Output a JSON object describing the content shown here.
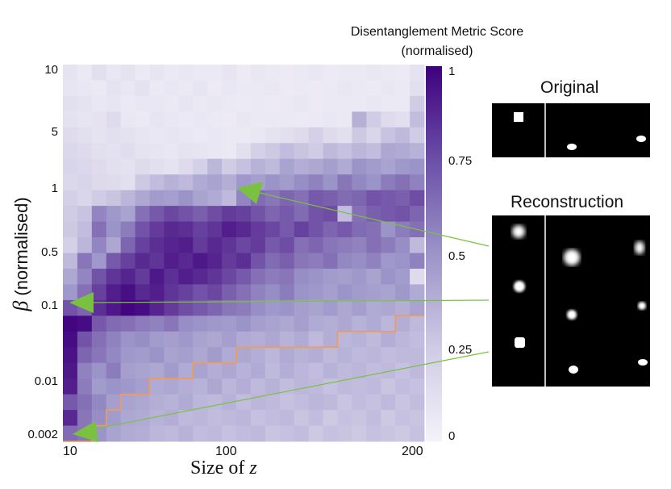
{
  "chart_data": {
    "type": "heatmap",
    "title": "",
    "xlabel_prefix": "Size of ",
    "xlabel_symbol": "z",
    "ylabel_symbol": "β",
    "ylabel_text": " (normalised)",
    "x_ticks": [
      "10",
      "100",
      "200"
    ],
    "y_ticks": [
      "10",
      "5",
      "1",
      "0.5",
      "0.1",
      "0.01",
      "0.002"
    ],
    "colorbar": {
      "title_line1": "Disentanglement Metric Score",
      "title_line2": "(normalised)",
      "ticks": [
        "1",
        "0.75",
        "0.5",
        "0.25",
        "0"
      ],
      "range": [
        0,
        1
      ],
      "low_color": "#f4f2f9",
      "high_color": "#3f007d"
    },
    "grid": {
      "rows": 24,
      "cols": 25,
      "note_rows": "top row = largest beta"
    },
    "values": [
      [
        0.08,
        0.05,
        0.1,
        0.06,
        0.08,
        0.05,
        0.07,
        0.05,
        0.06,
        0.05,
        0.05,
        0.07,
        0.04,
        0.06,
        0.05,
        0.04,
        0.05,
        0.06,
        0.04,
        0.05,
        0.05,
        0.06,
        0.05,
        0.04,
        0.08
      ],
      [
        0.07,
        0.06,
        0.05,
        0.08,
        0.06,
        0.09,
        0.05,
        0.06,
        0.05,
        0.07,
        0.04,
        0.06,
        0.05,
        0.05,
        0.06,
        0.04,
        0.05,
        0.04,
        0.05,
        0.06,
        0.05,
        0.04,
        0.06,
        0.05,
        0.1
      ],
      [
        0.1,
        0.08,
        0.06,
        0.07,
        0.05,
        0.06,
        0.06,
        0.05,
        0.07,
        0.05,
        0.06,
        0.05,
        0.04,
        0.05,
        0.04,
        0.05,
        0.06,
        0.04,
        0.05,
        0.05,
        0.05,
        0.06,
        0.05,
        0.05,
        0.2
      ],
      [
        0.09,
        0.07,
        0.08,
        0.12,
        0.06,
        0.05,
        0.07,
        0.06,
        0.05,
        0.06,
        0.05,
        0.04,
        0.06,
        0.05,
        0.05,
        0.05,
        0.04,
        0.05,
        0.06,
        0.05,
        0.35,
        0.2,
        0.12,
        0.1,
        0.28
      ],
      [
        0.12,
        0.1,
        0.08,
        0.1,
        0.09,
        0.07,
        0.06,
        0.07,
        0.06,
        0.05,
        0.06,
        0.05,
        0.05,
        0.06,
        0.08,
        0.1,
        0.12,
        0.18,
        0.12,
        0.1,
        0.22,
        0.15,
        0.25,
        0.3,
        0.2
      ],
      [
        0.14,
        0.12,
        0.1,
        0.09,
        0.11,
        0.08,
        0.07,
        0.06,
        0.08,
        0.07,
        0.06,
        0.05,
        0.1,
        0.18,
        0.22,
        0.28,
        0.24,
        0.2,
        0.3,
        0.26,
        0.32,
        0.28,
        0.4,
        0.38,
        0.34
      ],
      [
        0.16,
        0.14,
        0.12,
        0.1,
        0.09,
        0.12,
        0.1,
        0.08,
        0.12,
        0.18,
        0.32,
        0.2,
        0.26,
        0.34,
        0.3,
        0.42,
        0.36,
        0.4,
        0.44,
        0.38,
        0.5,
        0.46,
        0.42,
        0.48,
        0.5
      ],
      [
        0.14,
        0.16,
        0.13,
        0.12,
        0.1,
        0.22,
        0.28,
        0.34,
        0.3,
        0.38,
        0.42,
        0.36,
        0.48,
        0.44,
        0.5,
        0.46,
        0.52,
        0.56,
        0.5,
        0.6,
        0.54,
        0.5,
        0.58,
        0.62,
        0.56
      ],
      [
        0.18,
        0.15,
        0.2,
        0.24,
        0.32,
        0.4,
        0.46,
        0.44,
        0.5,
        0.42,
        0.38,
        0.3,
        0.55,
        0.64,
        0.6,
        0.66,
        0.62,
        0.7,
        0.68,
        0.64,
        0.66,
        0.72,
        0.7,
        0.68,
        0.74
      ],
      [
        0.2,
        0.25,
        0.55,
        0.48,
        0.42,
        0.62,
        0.7,
        0.76,
        0.72,
        0.68,
        0.74,
        0.8,
        0.78,
        0.72,
        0.66,
        0.7,
        0.64,
        0.72,
        0.74,
        0.28,
        0.62,
        0.68,
        0.7,
        0.72,
        0.66
      ],
      [
        0.22,
        0.28,
        0.62,
        0.5,
        0.58,
        0.72,
        0.8,
        0.86,
        0.84,
        0.78,
        0.82,
        0.9,
        0.86,
        0.8,
        0.76,
        0.7,
        0.78,
        0.72,
        0.66,
        0.7,
        0.64,
        0.62,
        0.5,
        0.58,
        0.62
      ],
      [
        0.18,
        0.32,
        0.55,
        0.4,
        0.66,
        0.78,
        0.84,
        0.88,
        0.9,
        0.8,
        0.86,
        0.82,
        0.76,
        0.8,
        0.7,
        0.74,
        0.62,
        0.66,
        0.6,
        0.58,
        0.56,
        0.62,
        0.58,
        0.52,
        0.3
      ],
      [
        0.3,
        0.6,
        0.48,
        0.7,
        0.78,
        0.86,
        0.82,
        0.9,
        0.86,
        0.92,
        0.88,
        0.8,
        0.84,
        0.72,
        0.64,
        0.68,
        0.6,
        0.58,
        0.62,
        0.54,
        0.52,
        0.56,
        0.48,
        0.5,
        0.56
      ],
      [
        0.4,
        0.55,
        0.72,
        0.82,
        0.88,
        0.8,
        0.92,
        0.84,
        0.9,
        0.86,
        0.82,
        0.76,
        0.7,
        0.62,
        0.58,
        0.6,
        0.52,
        0.5,
        0.46,
        0.44,
        0.48,
        0.42,
        0.5,
        0.46,
        0.12
      ],
      [
        0.48,
        0.62,
        0.78,
        0.9,
        0.95,
        0.86,
        0.9,
        0.82,
        0.78,
        0.72,
        0.76,
        0.68,
        0.62,
        0.56,
        0.52,
        0.58,
        0.5,
        0.48,
        0.44,
        0.5,
        0.46,
        0.44,
        0.42,
        0.48,
        0.38
      ],
      [
        0.72,
        0.66,
        0.84,
        0.92,
        0.98,
        0.96,
        0.88,
        0.8,
        0.74,
        0.7,
        0.66,
        0.6,
        0.58,
        0.52,
        0.48,
        0.5,
        0.44,
        0.42,
        0.46,
        0.4,
        0.44,
        0.38,
        0.4,
        0.36,
        0.42
      ],
      [
        0.98,
        0.96,
        0.7,
        0.64,
        0.62,
        0.58,
        0.56,
        0.6,
        0.52,
        0.5,
        0.48,
        0.46,
        0.5,
        0.44,
        0.42,
        0.4,
        0.44,
        0.38,
        0.36,
        0.4,
        0.34,
        0.38,
        0.32,
        0.36,
        0.3
      ],
      [
        0.96,
        0.72,
        0.62,
        0.56,
        0.5,
        0.52,
        0.46,
        0.44,
        0.48,
        0.42,
        0.4,
        0.44,
        0.38,
        0.36,
        0.4,
        0.34,
        0.38,
        0.3,
        0.36,
        0.32,
        0.34,
        0.3,
        0.36,
        0.32,
        0.28
      ],
      [
        0.94,
        0.66,
        0.6,
        0.54,
        0.48,
        0.46,
        0.5,
        0.42,
        0.44,
        0.4,
        0.46,
        0.38,
        0.4,
        0.36,
        0.32,
        0.38,
        0.34,
        0.36,
        0.3,
        0.34,
        0.3,
        0.32,
        0.28,
        0.3,
        0.3
      ],
      [
        0.92,
        0.56,
        0.5,
        0.58,
        0.44,
        0.42,
        0.4,
        0.46,
        0.38,
        0.42,
        0.36,
        0.4,
        0.34,
        0.38,
        0.3,
        0.36,
        0.32,
        0.28,
        0.34,
        0.3,
        0.32,
        0.28,
        0.3,
        0.26,
        0.3
      ],
      [
        0.9,
        0.58,
        0.46,
        0.5,
        0.48,
        0.44,
        0.38,
        0.4,
        0.36,
        0.34,
        0.4,
        0.32,
        0.36,
        0.3,
        0.34,
        0.28,
        0.32,
        0.3,
        0.26,
        0.3,
        0.28,
        0.3,
        0.24,
        0.28,
        0.26
      ],
      [
        0.7,
        0.62,
        0.54,
        0.44,
        0.42,
        0.4,
        0.36,
        0.34,
        0.38,
        0.32,
        0.3,
        0.34,
        0.28,
        0.32,
        0.3,
        0.26,
        0.28,
        0.32,
        0.3,
        0.24,
        0.28,
        0.26,
        0.3,
        0.24,
        0.28
      ],
      [
        0.86,
        0.6,
        0.52,
        0.46,
        0.4,
        0.38,
        0.34,
        0.36,
        0.3,
        0.32,
        0.28,
        0.3,
        0.32,
        0.26,
        0.28,
        0.3,
        0.24,
        0.28,
        0.22,
        0.26,
        0.24,
        0.28,
        0.22,
        0.26,
        0.24
      ],
      [
        0.64,
        0.6,
        0.5,
        0.42,
        0.38,
        0.36,
        0.32,
        0.3,
        0.34,
        0.28,
        0.3,
        0.26,
        0.28,
        0.3,
        0.24,
        0.26,
        0.28,
        0.22,
        0.26,
        0.24,
        0.22,
        0.26,
        0.24,
        0.22,
        0.26
      ]
    ],
    "boundary_steps": [
      24,
      24,
      23,
      22,
      21,
      21,
      20,
      20,
      20,
      19,
      19,
      19,
      18,
      18,
      18,
      18,
      18,
      18,
      18,
      17,
      17,
      17,
      17,
      16,
      16
    ],
    "boundary_color": "#f39b4f",
    "arrow_color": "#7ac142",
    "annotations": []
  },
  "panels": {
    "original_title": "Original",
    "reconstruction_title": "Reconstruction"
  }
}
